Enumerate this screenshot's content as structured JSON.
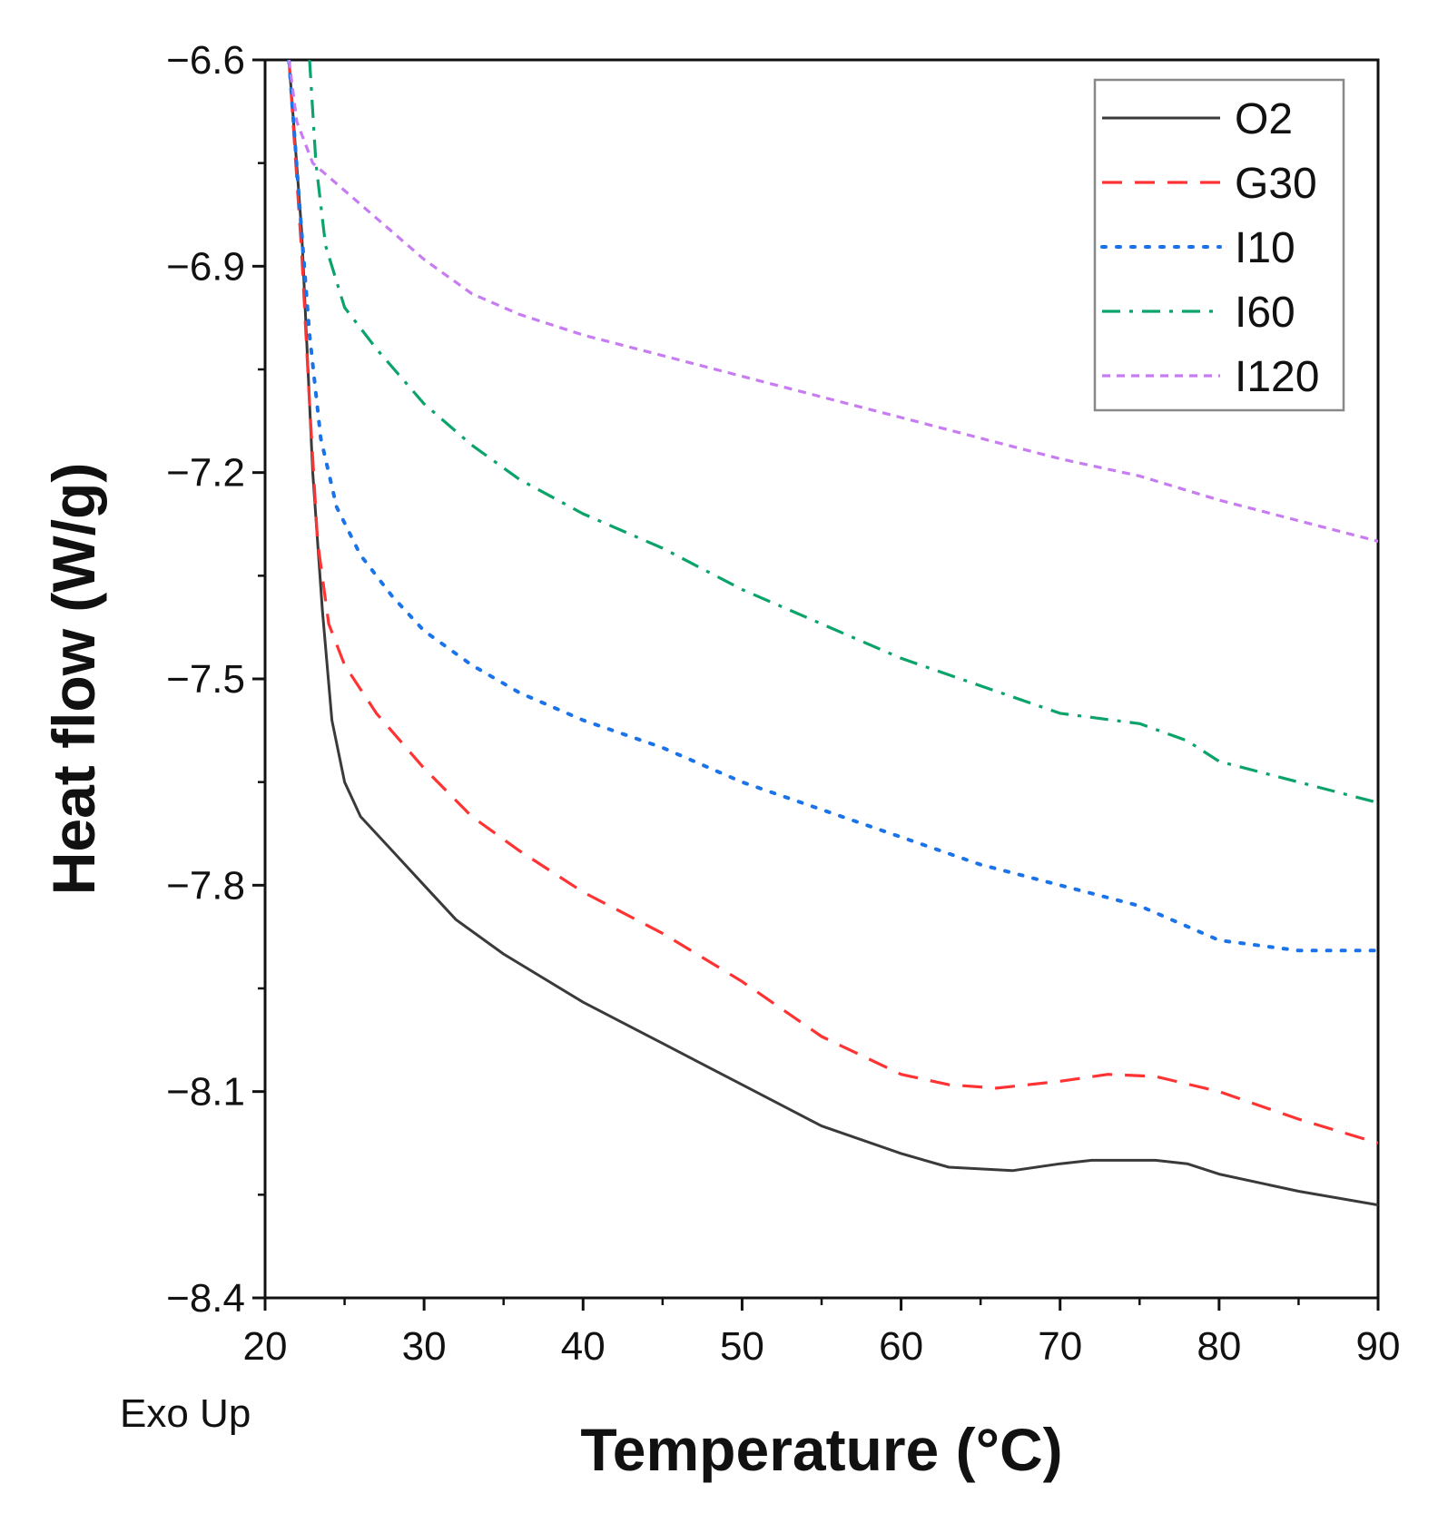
{
  "chart_data": {
    "type": "line",
    "xlabel": "Temperature (°C)",
    "ylabel": "Heat flow (W/g)",
    "note": "Exo Up",
    "xlim": [
      20,
      90
    ],
    "ylim": [
      -8.4,
      -6.6
    ],
    "x_ticks": [
      20,
      30,
      40,
      50,
      60,
      70,
      80,
      90
    ],
    "y_ticks": [
      -6.6,
      -6.9,
      -7.2,
      -7.5,
      -7.8,
      -8.1,
      -8.4
    ],
    "x_tick_labels": [
      "20",
      "30",
      "40",
      "50",
      "60",
      "70",
      "80",
      "90"
    ],
    "y_tick_labels": [
      "−6.6",
      "−6.9",
      "−7.2",
      "−7.5",
      "−7.8",
      "−8.1",
      "−8.4"
    ],
    "grid": false,
    "legend_position": "top-right",
    "series": [
      {
        "name": "O2",
        "color": "#3a3a3a",
        "style": "solid",
        "points": [
          [
            21.5,
            -6.6
          ],
          [
            22.3,
            -6.85
          ],
          [
            23.0,
            -7.2
          ],
          [
            23.6,
            -7.4
          ],
          [
            24.2,
            -7.56
          ],
          [
            25.0,
            -7.65
          ],
          [
            26.0,
            -7.7
          ],
          [
            28,
            -7.75
          ],
          [
            30,
            -7.8
          ],
          [
            32,
            -7.85
          ],
          [
            35,
            -7.9
          ],
          [
            40,
            -7.97
          ],
          [
            45,
            -8.03
          ],
          [
            50,
            -8.09
          ],
          [
            55,
            -8.15
          ],
          [
            60,
            -8.19
          ],
          [
            63,
            -8.21
          ],
          [
            67,
            -8.215
          ],
          [
            70,
            -8.205
          ],
          [
            72,
            -8.2
          ],
          [
            76,
            -8.2
          ],
          [
            78,
            -8.205
          ],
          [
            80,
            -8.22
          ],
          [
            85,
            -8.245
          ],
          [
            90,
            -8.265
          ]
        ]
      },
      {
        "name": "G30",
        "color": "#ff3333",
        "style": "dash",
        "points": [
          [
            21.5,
            -6.6
          ],
          [
            22.3,
            -6.88
          ],
          [
            22.8,
            -7.1
          ],
          [
            23.3,
            -7.3
          ],
          [
            24.0,
            -7.42
          ],
          [
            25.0,
            -7.48
          ],
          [
            27,
            -7.55
          ],
          [
            30,
            -7.63
          ],
          [
            33,
            -7.7
          ],
          [
            36,
            -7.75
          ],
          [
            40,
            -7.81
          ],
          [
            45,
            -7.87
          ],
          [
            50,
            -7.94
          ],
          [
            55,
            -8.02
          ],
          [
            60,
            -8.075
          ],
          [
            63,
            -8.09
          ],
          [
            66,
            -8.095
          ],
          [
            70,
            -8.085
          ],
          [
            73,
            -8.075
          ],
          [
            76,
            -8.078
          ],
          [
            80,
            -8.1
          ],
          [
            85,
            -8.14
          ],
          [
            90,
            -8.175
          ]
        ]
      },
      {
        "name": "I10",
        "color": "#1a73e8",
        "style": "dot",
        "points": [
          [
            21.5,
            -6.6
          ],
          [
            22.2,
            -6.82
          ],
          [
            22.8,
            -7.0
          ],
          [
            23.5,
            -7.15
          ],
          [
            24.5,
            -7.25
          ],
          [
            26,
            -7.32
          ],
          [
            28,
            -7.38
          ],
          [
            30,
            -7.43
          ],
          [
            33,
            -7.48
          ],
          [
            36,
            -7.52
          ],
          [
            40,
            -7.56
          ],
          [
            45,
            -7.6
          ],
          [
            50,
            -7.65
          ],
          [
            55,
            -7.69
          ],
          [
            60,
            -7.73
          ],
          [
            65,
            -7.77
          ],
          [
            70,
            -7.8
          ],
          [
            75,
            -7.83
          ],
          [
            78,
            -7.86
          ],
          [
            80,
            -7.88
          ],
          [
            85,
            -7.895
          ],
          [
            90,
            -7.895
          ]
        ]
      },
      {
        "name": "I60",
        "color": "#0aa36a",
        "style": "dashdot",
        "points": [
          [
            22.8,
            -6.6
          ],
          [
            23.2,
            -6.75
          ],
          [
            23.8,
            -6.87
          ],
          [
            25,
            -6.96
          ],
          [
            27,
            -7.02
          ],
          [
            30,
            -7.1
          ],
          [
            33,
            -7.16
          ],
          [
            36,
            -7.21
          ],
          [
            40,
            -7.26
          ],
          [
            45,
            -7.31
          ],
          [
            50,
            -7.37
          ],
          [
            55,
            -7.42
          ],
          [
            60,
            -7.47
          ],
          [
            65,
            -7.51
          ],
          [
            70,
            -7.55
          ],
          [
            75,
            -7.565
          ],
          [
            78,
            -7.59
          ],
          [
            80,
            -7.62
          ],
          [
            85,
            -7.65
          ],
          [
            90,
            -7.68
          ]
        ]
      },
      {
        "name": "I120",
        "color": "#c77cf2",
        "style": "shortdash",
        "points": [
          [
            21.5,
            -6.6
          ],
          [
            22.0,
            -6.69
          ],
          [
            23,
            -6.75
          ],
          [
            25,
            -6.79
          ],
          [
            27,
            -6.83
          ],
          [
            30,
            -6.89
          ],
          [
            33,
            -6.94
          ],
          [
            36,
            -6.97
          ],
          [
            40,
            -7.0
          ],
          [
            45,
            -7.03
          ],
          [
            50,
            -7.06
          ],
          [
            55,
            -7.09
          ],
          [
            60,
            -7.12
          ],
          [
            65,
            -7.15
          ],
          [
            70,
            -7.18
          ],
          [
            75,
            -7.205
          ],
          [
            80,
            -7.24
          ],
          [
            85,
            -7.27
          ],
          [
            90,
            -7.3
          ]
        ]
      }
    ]
  }
}
